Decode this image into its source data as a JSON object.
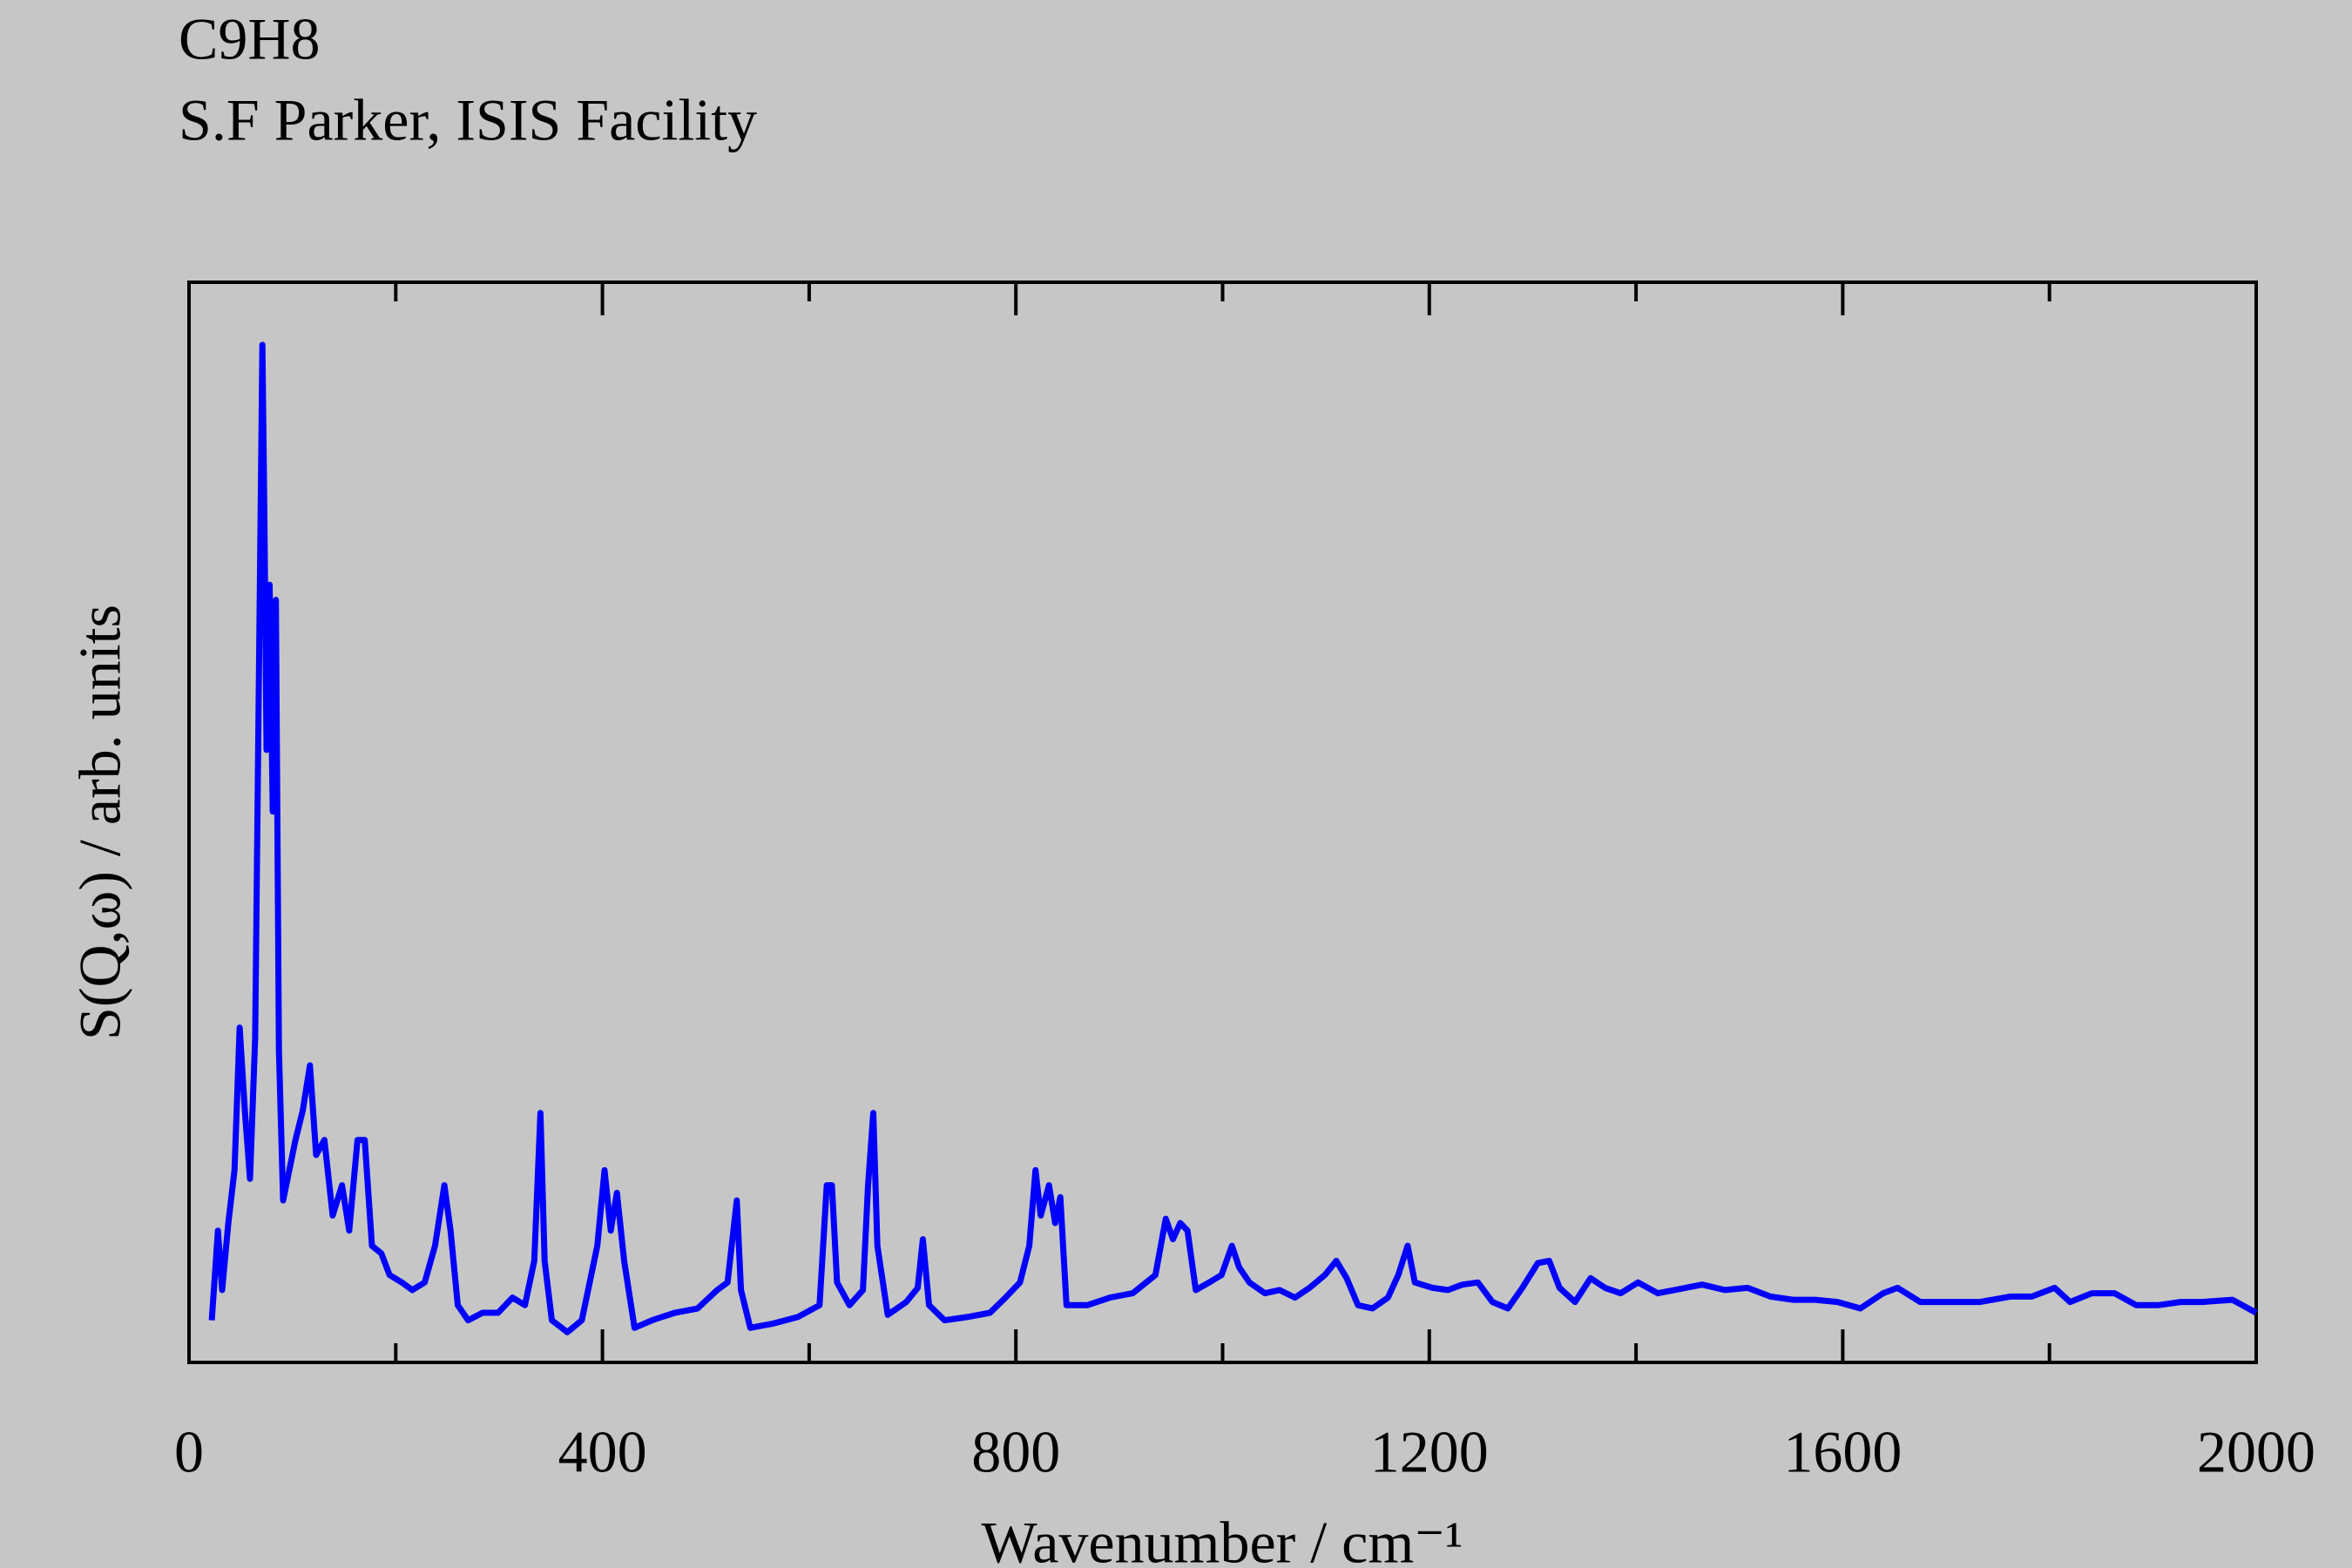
{
  "chart_data": {
    "type": "line",
    "title": "C9H8",
    "subtitle": "S.F Parker, ISIS Facility",
    "x_label": "Wavenumber / cm⁻¹",
    "y_label": "S(Q,ω) / arb. units",
    "xlim": [
      0,
      2000
    ],
    "ylim": [
      0,
      100
    ],
    "xticks": [
      0,
      400,
      800,
      1200,
      1600,
      2000
    ],
    "xminorticks": [
      200,
      600,
      1000,
      1400,
      1800
    ],
    "x": [
      22,
      28,
      32,
      38,
      44,
      49,
      54,
      59,
      64,
      71,
      73,
      75,
      78,
      81,
      84,
      87,
      91,
      97,
      103,
      110,
      117,
      123,
      131,
      139,
      148,
      155,
      163,
      170,
      177,
      186,
      194,
      206,
      216,
      228,
      238,
      247,
      253,
      260,
      270,
      284,
      299,
      313,
      325,
      334,
      340,
      344,
      351,
      366,
      380,
      395,
      402,
      408,
      414,
      421,
      431,
      448,
      470,
      492,
      511,
      521,
      530,
      534,
      543,
      565,
      589,
      610,
      617,
      622,
      627,
      639,
      652,
      657,
      662,
      666,
      676,
      694,
      705,
      710,
      716,
      731,
      753,
      775,
      790,
      804,
      813,
      819,
      824,
      832,
      838,
      843,
      849,
      869,
      891,
      913,
      935,
      945,
      952,
      959,
      966,
      974,
      987,
      999,
      1009,
      1016,
      1026,
      1041,
      1055,
      1070,
      1084,
      1099,
      1110,
      1120,
      1131,
      1145,
      1160,
      1170,
      1179,
      1186,
      1203,
      1218,
      1232,
      1247,
      1261,
      1276,
      1290,
      1305,
      1316,
      1326,
      1341,
      1356,
      1370,
      1385,
      1402,
      1421,
      1437,
      1464,
      1486,
      1508,
      1530,
      1552,
      1573,
      1595,
      1617,
      1639,
      1653,
      1675,
      1704,
      1733,
      1762,
      1783,
      1805,
      1820,
      1841,
      1863,
      1884,
      1905,
      1927,
      1948,
      1977,
      2000
    ],
    "series": [
      {
        "color": "#0000ff",
        "values": [
          3.9,
          12.2,
          6.7,
          12.9,
          17.8,
          31,
          23.3,
          17,
          30,
          94.2,
          77.5,
          56.7,
          72,
          51,
          70.6,
          28.9,
          15,
          17.8,
          20.6,
          23.3,
          27.5,
          19.2,
          20.6,
          13.6,
          16.4,
          12.2,
          20.6,
          20.6,
          10.8,
          10.1,
          8.1,
          7.4,
          6.7,
          7.4,
          10.8,
          16.4,
          12.2,
          5.3,
          3.9,
          4.6,
          4.6,
          6,
          5.3,
          9.4,
          23.1,
          9.4,
          3.9,
          2.8,
          3.9,
          10.8,
          17.8,
          12.2,
          15.7,
          9.4,
          3.2,
          3.9,
          4.6,
          5,
          6.7,
          7.4,
          15,
          6.7,
          3.2,
          3.6,
          4.2,
          5.3,
          16.4,
          16.4,
          7.4,
          5.3,
          6.7,
          16.4,
          23.1,
          10.8,
          4.4,
          5.6,
          6.9,
          11.4,
          5.3,
          3.9,
          4.2,
          4.6,
          6,
          7.4,
          10.8,
          17.8,
          13.6,
          16.4,
          12.9,
          15.3,
          5.3,
          5.3,
          6,
          6.4,
          8.1,
          13.3,
          11.4,
          12.9,
          12.2,
          6.7,
          7.4,
          8.1,
          10.8,
          8.8,
          7.4,
          6.4,
          6.7,
          6,
          6.9,
          8.1,
          9.4,
          7.8,
          5.3,
          5,
          6,
          8.1,
          10.8,
          7.4,
          6.9,
          6.7,
          7.2,
          7.4,
          5.6,
          5,
          6.9,
          9.2,
          9.4,
          6.9,
          5.6,
          7.8,
          6.9,
          6.4,
          7.4,
          6.4,
          6.7,
          7.2,
          6.7,
          6.9,
          6.1,
          5.8,
          5.8,
          5.6,
          5,
          6.4,
          6.9,
          5.6,
          5.6,
          5.6,
          6.1,
          6.1,
          6.9,
          5.6,
          6.4,
          6.4,
          5.3,
          5.3,
          5.6,
          5.6,
          5.8,
          4.6
        ]
      }
    ]
  }
}
